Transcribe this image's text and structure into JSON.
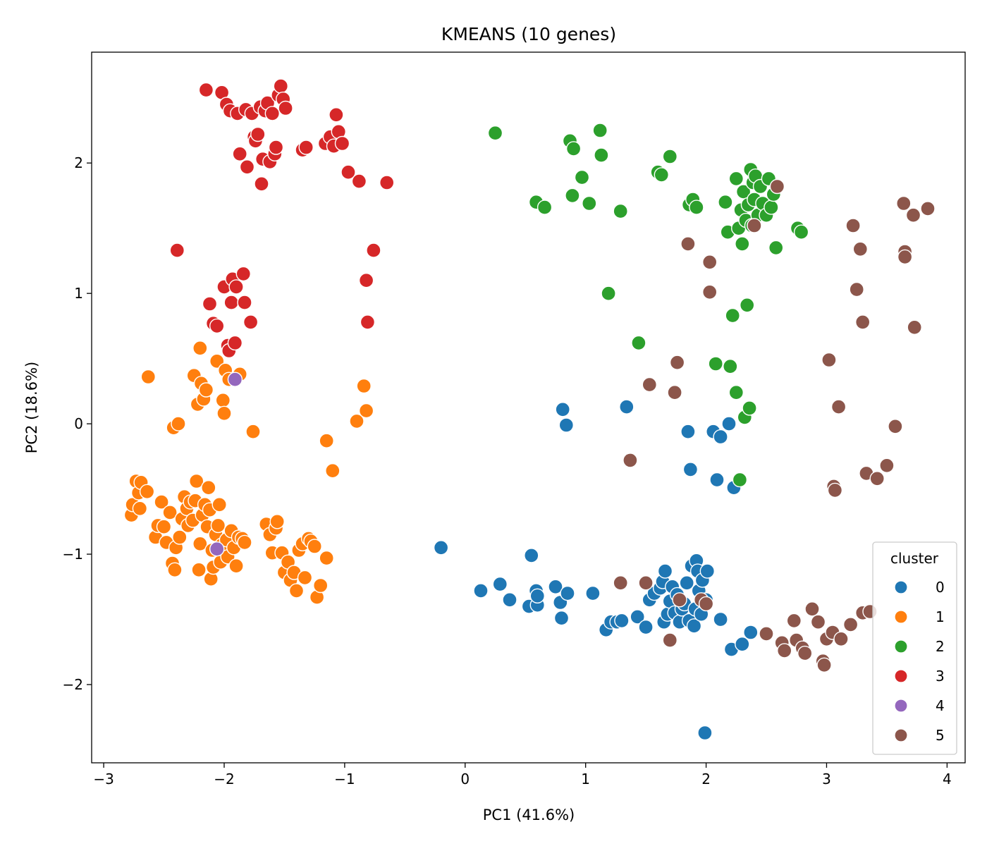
{
  "chart_data": {
    "type": "scatter",
    "title": "KMEANS (10 genes)",
    "xlabel": "PC1 (41.6%)",
    "ylabel": "PC2 (18.6%)",
    "xlim": [
      -3.1,
      4.15
    ],
    "ylim": [
      -2.6,
      2.85
    ],
    "xticks": [
      -3,
      -2,
      -1,
      0,
      1,
      2,
      3,
      4
    ],
    "yticks": [
      -2,
      -1,
      0,
      1,
      2
    ],
    "xtick_labels": [
      "−3",
      "−2",
      "−1",
      "0",
      "1",
      "2",
      "3",
      "4"
    ],
    "ytick_labels": [
      "−2",
      "−1",
      "0",
      "1",
      "2"
    ],
    "grid": false,
    "legend": {
      "title": "cluster",
      "placement": "lower-right"
    },
    "series": [
      {
        "name": "0",
        "color": "#1f77b4",
        "points": [
          [
            -0.2,
            -0.95
          ],
          [
            0.13,
            -1.28
          ],
          [
            0.29,
            -1.23
          ],
          [
            0.37,
            -1.35
          ],
          [
            0.53,
            -1.4
          ],
          [
            0.55,
            -1.01
          ],
          [
            0.59,
            -1.28
          ],
          [
            0.6,
            -1.39
          ],
          [
            0.6,
            -1.32
          ],
          [
            0.75,
            -1.25
          ],
          [
            0.79,
            -1.37
          ],
          [
            0.8,
            -1.49
          ],
          [
            0.81,
            0.11
          ],
          [
            0.84,
            -0.01
          ],
          [
            0.85,
            -1.3
          ],
          [
            1.06,
            -1.3
          ],
          [
            1.17,
            -1.58
          ],
          [
            1.21,
            -1.52
          ],
          [
            1.26,
            -1.52
          ],
          [
            1.3,
            -1.51
          ],
          [
            1.34,
            0.13
          ],
          [
            1.43,
            -1.48
          ],
          [
            1.5,
            -1.56
          ],
          [
            1.53,
            -1.35
          ],
          [
            1.57,
            -1.3
          ],
          [
            1.62,
            -1.26
          ],
          [
            1.64,
            -1.21
          ],
          [
            1.65,
            -1.52
          ],
          [
            1.66,
            -1.13
          ],
          [
            1.68,
            -1.46
          ],
          [
            1.7,
            -1.36
          ],
          [
            1.72,
            -1.25
          ],
          [
            1.74,
            -1.45
          ],
          [
            1.76,
            -1.31
          ],
          [
            1.78,
            -1.52
          ],
          [
            1.8,
            -1.42
          ],
          [
            1.82,
            -1.38
          ],
          [
            1.84,
            -1.22
          ],
          [
            1.85,
            -0.06
          ],
          [
            1.86,
            -1.51
          ],
          [
            1.87,
            -0.35
          ],
          [
            1.88,
            -1.09
          ],
          [
            1.9,
            -1.55
          ],
          [
            1.91,
            -1.42
          ],
          [
            1.92,
            -1.05
          ],
          [
            1.93,
            -1.13
          ],
          [
            1.94,
            -1.28
          ],
          [
            1.96,
            -1.46
          ],
          [
            1.97,
            -1.2
          ],
          [
            1.99,
            -2.37
          ],
          [
            2.0,
            -1.35
          ],
          [
            2.01,
            -1.13
          ],
          [
            2.06,
            -0.06
          ],
          [
            2.09,
            -0.43
          ],
          [
            2.12,
            -0.1
          ],
          [
            2.12,
            -1.5
          ],
          [
            2.19,
            0.0
          ],
          [
            2.21,
            -1.73
          ],
          [
            2.23,
            -0.49
          ],
          [
            2.3,
            -1.69
          ],
          [
            2.37,
            -1.6
          ]
        ]
      },
      {
        "name": "1",
        "color": "#ff7f0e",
        "points": [
          [
            -2.77,
            -0.7
          ],
          [
            -2.76,
            -0.62
          ],
          [
            -2.73,
            -0.44
          ],
          [
            -2.71,
            -0.53
          ],
          [
            -2.7,
            -0.65
          ],
          [
            -2.69,
            -0.45
          ],
          [
            -2.64,
            -0.52
          ],
          [
            -2.63,
            0.36
          ],
          [
            -2.57,
            -0.87
          ],
          [
            -2.55,
            -0.78
          ],
          [
            -2.52,
            -0.6
          ],
          [
            -2.5,
            -0.79
          ],
          [
            -2.48,
            -0.91
          ],
          [
            -2.45,
            -0.68
          ],
          [
            -2.43,
            -1.07
          ],
          [
            -2.42,
            -0.03
          ],
          [
            -2.41,
            -1.12
          ],
          [
            -2.4,
            -0.95
          ],
          [
            -2.38,
            0.0
          ],
          [
            -2.37,
            -0.87
          ],
          [
            -2.35,
            -0.73
          ],
          [
            -2.33,
            -0.56
          ],
          [
            -2.31,
            -0.65
          ],
          [
            -2.3,
            -0.78
          ],
          [
            -2.28,
            -0.6
          ],
          [
            -2.26,
            -0.74
          ],
          [
            -2.25,
            0.37
          ],
          [
            -2.24,
            -0.59
          ],
          [
            -2.23,
            -0.44
          ],
          [
            -2.22,
            0.15
          ],
          [
            -2.21,
            -1.12
          ],
          [
            -2.2,
            0.58
          ],
          [
            -2.2,
            -0.92
          ],
          [
            -2.19,
            0.31
          ],
          [
            -2.18,
            -0.7
          ],
          [
            -2.17,
            0.19
          ],
          [
            -2.16,
            -0.62
          ],
          [
            -2.15,
            0.26
          ],
          [
            -2.14,
            -0.79
          ],
          [
            -2.13,
            -0.49
          ],
          [
            -2.12,
            -0.66
          ],
          [
            -2.11,
            -1.19
          ],
          [
            -2.1,
            -0.97
          ],
          [
            -2.09,
            -1.1
          ],
          [
            -2.07,
            -0.85
          ],
          [
            -2.06,
            0.48
          ],
          [
            -2.05,
            -0.78
          ],
          [
            -2.04,
            -0.62
          ],
          [
            -2.03,
            -1.06
          ],
          [
            -2.02,
            -0.93
          ],
          [
            -2.01,
            0.18
          ],
          [
            -2.0,
            0.08
          ],
          [
            -1.99,
            0.41
          ],
          [
            -1.98,
            -0.89
          ],
          [
            -1.97,
            -1.02
          ],
          [
            -1.96,
            0.34
          ],
          [
            -1.94,
            -0.82
          ],
          [
            -1.92,
            -0.95
          ],
          [
            -1.9,
            -1.09
          ],
          [
            -1.88,
            -0.87
          ],
          [
            -1.87,
            0.38
          ],
          [
            -1.85,
            -0.88
          ],
          [
            -1.83,
            -0.91
          ],
          [
            -1.76,
            -0.06
          ],
          [
            -1.65,
            -0.77
          ],
          [
            -1.62,
            -0.85
          ],
          [
            -1.6,
            -0.99
          ],
          [
            -1.57,
            -0.8
          ],
          [
            -1.56,
            -0.75
          ],
          [
            -1.52,
            -0.99
          ],
          [
            -1.5,
            -1.14
          ],
          [
            -1.47,
            -1.06
          ],
          [
            -1.45,
            -1.2
          ],
          [
            -1.42,
            -1.14
          ],
          [
            -1.4,
            -1.28
          ],
          [
            -1.38,
            -0.97
          ],
          [
            -1.35,
            -0.92
          ],
          [
            -1.33,
            -1.18
          ],
          [
            -1.3,
            -0.88
          ],
          [
            -1.28,
            -0.9
          ],
          [
            -1.25,
            -0.94
          ],
          [
            -1.23,
            -1.33
          ],
          [
            -1.2,
            -1.24
          ],
          [
            -1.15,
            -1.03
          ],
          [
            -1.15,
            -0.13
          ],
          [
            -1.1,
            -0.36
          ],
          [
            -0.9,
            0.02
          ],
          [
            -0.84,
            0.29
          ],
          [
            -0.82,
            0.1
          ]
        ]
      },
      {
        "name": "2",
        "color": "#2ca02c",
        "points": [
          [
            0.25,
            2.23
          ],
          [
            0.59,
            1.7
          ],
          [
            0.66,
            1.66
          ],
          [
            0.87,
            2.17
          ],
          [
            0.89,
            1.75
          ],
          [
            0.9,
            2.11
          ],
          [
            0.97,
            1.89
          ],
          [
            1.03,
            1.69
          ],
          [
            1.12,
            2.25
          ],
          [
            1.13,
            2.06
          ],
          [
            1.19,
            1.0
          ],
          [
            1.29,
            1.63
          ],
          [
            1.44,
            0.62
          ],
          [
            1.6,
            1.93
          ],
          [
            1.63,
            1.91
          ],
          [
            1.7,
            2.05
          ],
          [
            1.86,
            1.68
          ],
          [
            1.89,
            1.72
          ],
          [
            1.92,
            1.66
          ],
          [
            2.08,
            0.46
          ],
          [
            2.16,
            1.7
          ],
          [
            2.18,
            1.47
          ],
          [
            2.2,
            0.44
          ],
          [
            2.22,
            0.83
          ],
          [
            2.25,
            0.24
          ],
          [
            2.25,
            1.88
          ],
          [
            2.27,
            1.5
          ],
          [
            2.28,
            -0.43
          ],
          [
            2.29,
            1.64
          ],
          [
            2.3,
            1.38
          ],
          [
            2.31,
            1.78
          ],
          [
            2.32,
            0.05
          ],
          [
            2.33,
            1.56
          ],
          [
            2.34,
            0.91
          ],
          [
            2.35,
            1.68
          ],
          [
            2.36,
            0.12
          ],
          [
            2.37,
            1.95
          ],
          [
            2.38,
            1.52
          ],
          [
            2.39,
            1.85
          ],
          [
            2.4,
            1.72
          ],
          [
            2.41,
            1.9
          ],
          [
            2.43,
            1.6
          ],
          [
            2.45,
            1.82
          ],
          [
            2.47,
            1.69
          ],
          [
            2.5,
            1.6
          ],
          [
            2.52,
            1.88
          ],
          [
            2.54,
            1.66
          ],
          [
            2.56,
            1.76
          ],
          [
            2.58,
            1.35
          ],
          [
            2.76,
            1.5
          ],
          [
            2.79,
            1.47
          ]
        ]
      },
      {
        "name": "3",
        "color": "#d62728",
        "points": [
          [
            -2.39,
            1.33
          ],
          [
            -2.15,
            2.56
          ],
          [
            -2.12,
            0.92
          ],
          [
            -2.09,
            0.77
          ],
          [
            -2.06,
            0.75
          ],
          [
            -2.02,
            2.54
          ],
          [
            -2.0,
            1.05
          ],
          [
            -1.98,
            2.45
          ],
          [
            -1.97,
            0.6
          ],
          [
            -1.96,
            0.56
          ],
          [
            -1.95,
            2.4
          ],
          [
            -1.94,
            0.93
          ],
          [
            -1.93,
            1.11
          ],
          [
            -1.91,
            0.62
          ],
          [
            -1.9,
            1.05
          ],
          [
            -1.89,
            2.38
          ],
          [
            -1.87,
            2.07
          ],
          [
            -1.84,
            1.15
          ],
          [
            -1.83,
            0.93
          ],
          [
            -1.82,
            2.41
          ],
          [
            -1.81,
            1.97
          ],
          [
            -1.78,
            0.78
          ],
          [
            -1.77,
            2.38
          ],
          [
            -1.75,
            2.2
          ],
          [
            -1.74,
            2.17
          ],
          [
            -1.72,
            2.22
          ],
          [
            -1.7,
            2.43
          ],
          [
            -1.69,
            1.84
          ],
          [
            -1.68,
            2.03
          ],
          [
            -1.66,
            2.4
          ],
          [
            -1.64,
            2.46
          ],
          [
            -1.62,
            2.01
          ],
          [
            -1.6,
            2.38
          ],
          [
            -1.58,
            2.07
          ],
          [
            -1.57,
            2.12
          ],
          [
            -1.55,
            2.52
          ],
          [
            -1.53,
            2.59
          ],
          [
            -1.51,
            2.49
          ],
          [
            -1.49,
            2.42
          ],
          [
            -1.35,
            2.1
          ],
          [
            -1.32,
            2.12
          ],
          [
            -1.16,
            2.15
          ],
          [
            -1.12,
            2.2
          ],
          [
            -1.09,
            2.13
          ],
          [
            -1.07,
            2.37
          ],
          [
            -1.05,
            2.24
          ],
          [
            -1.02,
            2.15
          ],
          [
            -0.97,
            1.93
          ],
          [
            -0.88,
            1.86
          ],
          [
            -0.82,
            1.1
          ],
          [
            -0.81,
            0.78
          ],
          [
            -0.76,
            1.33
          ],
          [
            -0.65,
            1.85
          ]
        ]
      },
      {
        "name": "4",
        "color": "#9467bd",
        "points": [
          [
            -1.91,
            0.34
          ],
          [
            -2.06,
            -0.96
          ]
        ]
      },
      {
        "name": "5",
        "color": "#8c564b",
        "points": [
          [
            1.29,
            -1.22
          ],
          [
            1.37,
            -0.28
          ],
          [
            1.5,
            -1.22
          ],
          [
            1.53,
            0.3
          ],
          [
            1.7,
            -1.66
          ],
          [
            1.74,
            0.24
          ],
          [
            1.76,
            0.47
          ],
          [
            1.78,
            -1.35
          ],
          [
            1.85,
            1.38
          ],
          [
            1.96,
            -1.35
          ],
          [
            2.0,
            -1.38
          ],
          [
            2.03,
            1.01
          ],
          [
            2.03,
            1.24
          ],
          [
            2.4,
            1.52
          ],
          [
            2.59,
            1.82
          ],
          [
            2.5,
            -1.61
          ],
          [
            2.63,
            -1.68
          ],
          [
            2.65,
            -1.74
          ],
          [
            2.73,
            -1.51
          ],
          [
            2.75,
            -1.66
          ],
          [
            2.8,
            -1.72
          ],
          [
            2.82,
            -1.76
          ],
          [
            2.88,
            -1.42
          ],
          [
            2.93,
            -1.52
          ],
          [
            2.97,
            -1.82
          ],
          [
            2.98,
            -1.85
          ],
          [
            3.0,
            -1.65
          ],
          [
            3.02,
            0.49
          ],
          [
            3.05,
            -1.6
          ],
          [
            3.06,
            -0.48
          ],
          [
            3.07,
            -0.51
          ],
          [
            3.1,
            0.13
          ],
          [
            3.12,
            -1.65
          ],
          [
            3.2,
            -1.54
          ],
          [
            3.22,
            1.52
          ],
          [
            3.25,
            1.03
          ],
          [
            3.28,
            1.34
          ],
          [
            3.3,
            0.78
          ],
          [
            3.3,
            -1.45
          ],
          [
            3.33,
            -0.38
          ],
          [
            3.36,
            -1.44
          ],
          [
            3.42,
            -0.42
          ],
          [
            3.5,
            -0.32
          ],
          [
            3.57,
            -0.02
          ],
          [
            3.64,
            1.69
          ],
          [
            3.65,
            1.32
          ],
          [
            3.65,
            1.28
          ],
          [
            3.72,
            1.6
          ],
          [
            3.73,
            0.74
          ],
          [
            3.84,
            1.65
          ]
        ]
      }
    ]
  }
}
